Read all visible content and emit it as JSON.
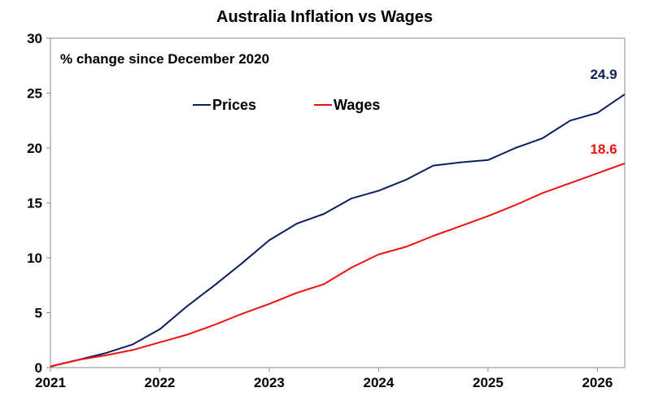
{
  "chart_data": {
    "type": "line",
    "title": "Australia Inflation vs Wages",
    "subtitle": "% change since December 2020",
    "xlabel": "",
    "ylabel": "",
    "xlim": [
      2021.0,
      2026.25
    ],
    "ylim": [
      0,
      30
    ],
    "yticks": [
      0,
      5,
      10,
      15,
      20,
      25,
      30
    ],
    "xticks": [
      2021,
      2022,
      2023,
      2024,
      2025,
      2026
    ],
    "xtick_labels": [
      "2021",
      "2022",
      "2023",
      "2024",
      "2025",
      "2026"
    ],
    "grid": false,
    "legend_position": "top-center",
    "series": [
      {
        "name": "Prices",
        "color": "#0b1f5c",
        "end_label": "24.9",
        "x": [
          2021.0,
          2021.25,
          2021.5,
          2021.75,
          2022.0,
          2022.25,
          2022.5,
          2022.75,
          2023.0,
          2023.25,
          2023.5,
          2023.75,
          2024.0,
          2024.25,
          2024.5,
          2024.75,
          2025.0,
          2025.25,
          2025.5,
          2025.75,
          2026.0,
          2026.25
        ],
        "y": [
          0.1,
          0.7,
          1.3,
          2.1,
          3.5,
          5.6,
          7.5,
          9.5,
          11.6,
          13.1,
          14.0,
          15.4,
          16.1,
          17.1,
          18.4,
          18.7,
          18.9,
          20.0,
          20.9,
          22.5,
          23.2,
          24.9
        ]
      },
      {
        "name": "Wages",
        "color": "#ee1111",
        "end_label": "18.6",
        "x": [
          2021.0,
          2021.25,
          2021.5,
          2021.75,
          2022.0,
          2022.25,
          2022.5,
          2022.75,
          2023.0,
          2023.25,
          2023.5,
          2023.75,
          2024.0,
          2024.25,
          2024.5,
          2024.75,
          2025.0,
          2025.25,
          2025.5,
          2025.75,
          2026.0,
          2026.25
        ],
        "y": [
          0.1,
          0.7,
          1.1,
          1.6,
          2.3,
          3.0,
          3.9,
          4.9,
          5.8,
          6.8,
          7.6,
          9.1,
          10.3,
          11.0,
          12.0,
          12.9,
          13.8,
          14.8,
          15.9,
          16.8,
          17.7,
          18.6
        ]
      }
    ]
  }
}
